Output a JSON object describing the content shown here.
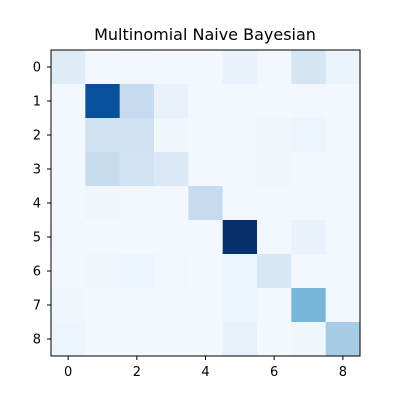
{
  "chart_data": {
    "type": "heatmap",
    "title": "Multinomial Naive Bayesian",
    "xlabel": "",
    "ylabel": "",
    "colormap": "Blues",
    "rows": [
      0,
      1,
      2,
      3,
      4,
      5,
      6,
      7,
      8
    ],
    "cols": [
      0,
      1,
      2,
      3,
      4,
      5,
      6,
      7,
      8
    ],
    "x_tick_labels": [
      "0",
      "2",
      "4",
      "6",
      "8"
    ],
    "y_tick_labels": [
      "0",
      "1",
      "2",
      "3",
      "4",
      "5",
      "6",
      "7",
      "8"
    ],
    "vmin": 0,
    "vmax": 1,
    "values": [
      [
        0.12,
        0.02,
        0.03,
        0.02,
        0.02,
        0.07,
        0.03,
        0.17,
        0.06
      ],
      [
        0.02,
        0.88,
        0.25,
        0.07,
        0.02,
        0.02,
        0.02,
        0.03,
        0.02
      ],
      [
        0.02,
        0.2,
        0.2,
        0.04,
        0.02,
        0.03,
        0.04,
        0.05,
        0.02
      ],
      [
        0.02,
        0.24,
        0.19,
        0.14,
        0.02,
        0.03,
        0.04,
        0.02,
        0.02
      ],
      [
        0.02,
        0.04,
        0.02,
        0.02,
        0.25,
        0.02,
        0.02,
        0.02,
        0.02
      ],
      [
        0.03,
        0.02,
        0.02,
        0.02,
        0.02,
        1.0,
        0.02,
        0.07,
        0.03
      ],
      [
        0.02,
        0.04,
        0.05,
        0.03,
        0.02,
        0.05,
        0.16,
        0.02,
        0.02
      ],
      [
        0.04,
        0.02,
        0.02,
        0.02,
        0.02,
        0.05,
        0.02,
        0.47,
        0.02
      ],
      [
        0.05,
        0.02,
        0.02,
        0.02,
        0.02,
        0.08,
        0.02,
        0.04,
        0.35
      ]
    ]
  }
}
